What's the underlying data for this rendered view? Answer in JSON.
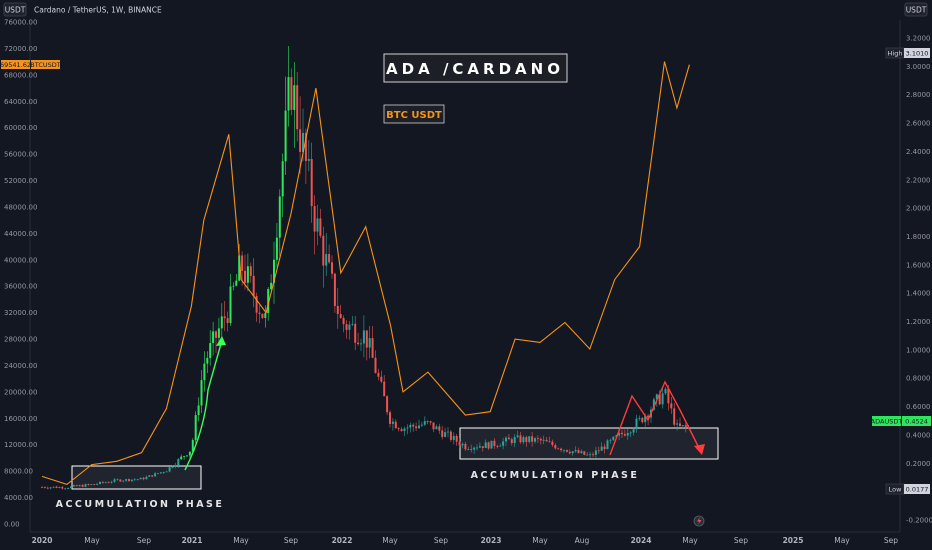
{
  "header": {
    "currency_left": "USDT",
    "currency_right": "USDT",
    "symbol_line": "Cardano / TetherUS, 1W, BINANCE"
  },
  "annotations": {
    "title": "ADA /CARDANO",
    "overlay_label": "BTC USDT",
    "accumulation_left": "ACCUMULATION PHASE",
    "accumulation_right": "ACCUMULATION PHASE"
  },
  "left_axis": {
    "labels": [
      "76000.00",
      "72000.00",
      "68000.00",
      "64000.00",
      "60000.00",
      "56000.00",
      "52000.00",
      "48000.00",
      "44000.00",
      "40000.00",
      "36000.00",
      "32000.00",
      "28000.00",
      "24000.00",
      "20000.00",
      "16000.00",
      "12000.00",
      "8000.00",
      "4000.00",
      "0.00"
    ],
    "current_badge": "69541.62",
    "current_badge_label": "BTCUSDT"
  },
  "right_axis": {
    "labels": [
      "3.2000",
      "3.0000",
      "2.8000",
      "2.6000",
      "2.4000",
      "2.2000",
      "2.0000",
      "1.8000",
      "1.6000",
      "1.4000",
      "1.2000",
      "1.0000",
      "0.8000",
      "0.6000",
      "0.4000",
      "0.2000",
      "-0.2000"
    ],
    "high_label": "High",
    "high_value": "3.1010",
    "low_label": "Low",
    "low_value": "0.0177",
    "current_badge": "0.4524",
    "current_badge_label": "ADAUSDT"
  },
  "time_axis": {
    "labels": [
      "2020",
      "May",
      "Sep",
      "2021",
      "May",
      "Sep",
      "2022",
      "May",
      "Sep",
      "2023",
      "May",
      "Aug",
      "2024",
      "May",
      "Sep",
      "2025",
      "May",
      "Sep"
    ]
  },
  "colors": {
    "background": "#131722",
    "btc_line": "#f7931a",
    "up_candle": "#26a69a",
    "bright_up": "#2ee65c",
    "down_candle": "#ef5350",
    "box_stroke": "#ffffff",
    "arrow_green": "#3cff5a",
    "arrow_red": "#ff3b3b"
  },
  "chart_data": {
    "type": "line",
    "title": "ADA /CARDANO",
    "series": [
      {
        "name": "BTC USDT",
        "axis": "left",
        "x": [
          "2020-01",
          "2020-03",
          "2020-05",
          "2020-07",
          "2020-09",
          "2020-11",
          "2021-01",
          "2021-02",
          "2021-04",
          "2021-05",
          "2021-07",
          "2021-09",
          "2021-11",
          "2022-01",
          "2022-03",
          "2022-05",
          "2022-06",
          "2022-08",
          "2022-11",
          "2023-01",
          "2023-03",
          "2023-05",
          "2023-07",
          "2023-09",
          "2023-11",
          "2024-01",
          "2024-03",
          "2024-04",
          "2024-05"
        ],
        "values": [
          7200,
          6000,
          9000,
          9500,
          10800,
          17500,
          33000,
          46000,
          59000,
          37000,
          32000,
          47000,
          66000,
          38000,
          45000,
          30000,
          20000,
          23000,
          16500,
          17000,
          28000,
          27500,
          30500,
          26500,
          37000,
          42000,
          70000,
          63000,
          69541
        ]
      },
      {
        "name": "ADAUSDT",
        "axis": "right",
        "x": [
          "2020-01",
          "2020-03",
          "2020-05",
          "2020-07",
          "2020-09",
          "2020-11",
          "2021-01",
          "2021-02",
          "2021-04",
          "2021-05",
          "2021-07",
          "2021-09",
          "2021-11",
          "2022-01",
          "2022-03",
          "2022-05",
          "2022-06",
          "2022-08",
          "2022-11",
          "2023-01",
          "2023-03",
          "2023-05",
          "2023-07",
          "2023-09",
          "2023-11",
          "2024-01",
          "2024-03",
          "2024-04",
          "2024-05"
        ],
        "values": [
          0.033,
          0.03,
          0.05,
          0.08,
          0.09,
          0.15,
          0.3,
          0.9,
          1.3,
          1.6,
          1.2,
          2.9,
          1.9,
          1.2,
          1.1,
          0.5,
          0.45,
          0.48,
          0.32,
          0.33,
          0.37,
          0.36,
          0.3,
          0.25,
          0.37,
          0.5,
          0.7,
          0.45,
          0.452
        ]
      }
    ],
    "left_ylim": [
      0,
      76000
    ],
    "right_ylim": [
      -0.2,
      3.2
    ]
  }
}
